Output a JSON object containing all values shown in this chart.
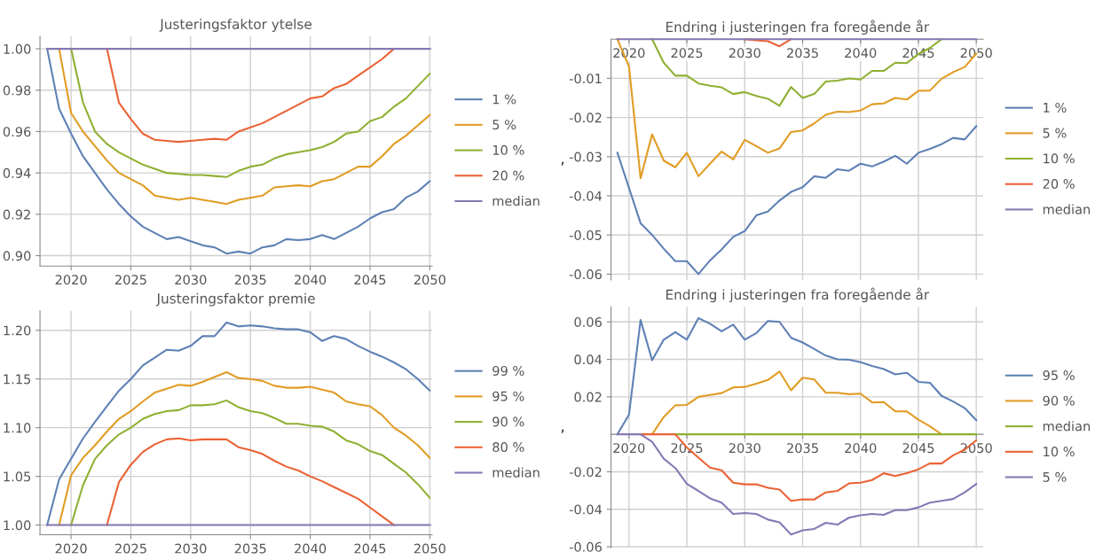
{
  "chart_data": [
    {
      "type": "line",
      "title": "Justeringsfaktor ytelse",
      "x": [
        2018,
        2019,
        2020,
        2021,
        2022,
        2023,
        2024,
        2025,
        2026,
        2027,
        2028,
        2029,
        2030,
        2031,
        2032,
        2033,
        2034,
        2035,
        2036,
        2037,
        2038,
        2039,
        2040,
        2041,
        2042,
        2043,
        2044,
        2045,
        2046,
        2047,
        2048,
        2049,
        2050
      ],
      "xlim": [
        2017.4,
        2050.2
      ],
      "xticks": [
        2020,
        2025,
        2030,
        2035,
        2040,
        2045,
        2050
      ],
      "ylim": [
        0.895,
        1.006
      ],
      "yticks": [
        {
          "value": 0.9,
          "label": "0.90"
        },
        {
          "value": 0.92,
          "label": "0.92"
        },
        {
          "value": 0.94,
          "label": "0.94"
        },
        {
          "value": 0.96,
          "label": "0.96"
        },
        {
          "value": 0.98,
          "label": "0.98"
        },
        {
          "value": 1.0,
          "label": "1.00"
        }
      ],
      "grid": true,
      "legend": "right",
      "marker": "none",
      "line_style": "solid",
      "series": [
        {
          "name": "1 %",
          "color": "#5e81b5",
          "values": [
            1.0,
            0.971,
            0.959,
            0.948,
            0.94,
            0.932,
            0.925,
            0.919,
            0.914,
            0.911,
            0.908,
            0.909,
            0.907,
            0.905,
            0.904,
            0.901,
            0.902,
            0.901,
            0.904,
            0.905,
            0.908,
            0.9075,
            0.908,
            0.91,
            0.908,
            0.911,
            0.914,
            0.918,
            0.921,
            0.9225,
            0.928,
            0.931,
            0.936
          ]
        },
        {
          "name": "5 %",
          "color": "#e19c24",
          "values": [
            null,
            1.0,
            0.969,
            0.96,
            0.953,
            0.946,
            0.94,
            0.937,
            0.934,
            0.929,
            0.928,
            0.927,
            0.928,
            0.927,
            0.926,
            0.925,
            0.927,
            0.928,
            0.929,
            0.933,
            0.9335,
            0.934,
            0.9335,
            0.936,
            0.937,
            0.94,
            0.943,
            0.943,
            0.948,
            0.954,
            0.958,
            0.963,
            0.968
          ]
        },
        {
          "name": "10 %",
          "color": "#8fb032",
          "values": [
            null,
            null,
            1.0,
            0.974,
            0.96,
            0.954,
            0.95,
            0.947,
            0.944,
            0.942,
            0.94,
            0.9395,
            0.939,
            0.939,
            0.9385,
            0.938,
            0.941,
            0.943,
            0.944,
            0.947,
            0.949,
            0.95,
            0.951,
            0.9525,
            0.955,
            0.959,
            0.96,
            0.965,
            0.967,
            0.972,
            0.976,
            0.982,
            0.988
          ]
        },
        {
          "name": "20 %",
          "color": "#eb6235",
          "values": [
            null,
            null,
            null,
            null,
            null,
            1.0,
            0.974,
            0.966,
            0.959,
            0.956,
            0.9555,
            0.955,
            0.9555,
            0.956,
            0.9565,
            0.956,
            0.96,
            0.962,
            0.964,
            0.967,
            0.97,
            0.973,
            0.976,
            0.977,
            0.981,
            0.983,
            0.987,
            0.991,
            0.995,
            1.0,
            null,
            null,
            null
          ]
        },
        {
          "name": "median",
          "color": "#8778b3",
          "values": [
            1.0,
            1.0,
            1.0,
            1.0,
            1.0,
            1.0,
            1.0,
            1.0,
            1.0,
            1.0,
            1.0,
            1.0,
            1.0,
            1.0,
            1.0,
            1.0,
            1.0,
            1.0,
            1.0,
            1.0,
            1.0,
            1.0,
            1.0,
            1.0,
            1.0,
            1.0,
            1.0,
            1.0,
            1.0,
            1.0,
            1.0,
            1.0,
            1.0
          ]
        }
      ]
    },
    {
      "type": "line",
      "title": "Endring i justeringen fra foregående år",
      "annotations": [
        ","
      ],
      "x": [
        2019,
        2020,
        2021,
        2022,
        2023,
        2024,
        2025,
        2026,
        2027,
        2028,
        2029,
        2030,
        2031,
        2032,
        2033,
        2034,
        2035,
        2036,
        2037,
        2038,
        2039,
        2040,
        2041,
        2042,
        2043,
        2044,
        2045,
        2046,
        2047,
        2048,
        2049,
        2050
      ],
      "xlim": [
        2018.45,
        2050.6
      ],
      "xticks": [
        2020,
        2025,
        2030,
        2035,
        2040,
        2045,
        2050
      ],
      "ylim": [
        -0.0615,
        0
      ],
      "yticks": [
        -0.06,
        -0.05,
        -0.04,
        -0.03,
        -0.02,
        -0.01
      ],
      "grid": true,
      "legend": "right",
      "marker": "none",
      "line_style": "solid",
      "series": [
        {
          "name": "1 %",
          "color": "#5e81b5",
          "values": [
            -0.029,
            -0.038,
            -0.047,
            -0.05,
            -0.0535,
            -0.0567,
            -0.0567,
            -0.06,
            -0.0565,
            -0.0537,
            -0.0505,
            -0.049,
            -0.045,
            -0.044,
            -0.0412,
            -0.039,
            -0.0378,
            -0.035,
            -0.0354,
            -0.0332,
            -0.0336,
            -0.0318,
            -0.0325,
            -0.0313,
            -0.0298,
            -0.0318,
            -0.029,
            -0.028,
            -0.0268,
            -0.0252,
            -0.0256,
            -0.0222
          ]
        },
        {
          "name": "5 %",
          "color": "#e19c24",
          "values": [
            0,
            -0.007,
            -0.0355,
            -0.0243,
            -0.031,
            -0.0327,
            -0.029,
            -0.035,
            -0.0318,
            -0.0287,
            -0.0307,
            -0.0257,
            -0.0273,
            -0.029,
            -0.0279,
            -0.0237,
            -0.0233,
            -0.0215,
            -0.0193,
            -0.0185,
            -0.0186,
            -0.0182,
            -0.0166,
            -0.0164,
            -0.015,
            -0.0154,
            -0.0132,
            -0.0131,
            -0.0101,
            -0.0084,
            -0.0071,
            -0.0037
          ]
        },
        {
          "name": "10 %",
          "color": "#8fb032",
          "values": [
            null,
            null,
            null,
            0,
            -0.006,
            -0.0093,
            -0.0093,
            -0.0113,
            -0.0119,
            -0.0123,
            -0.014,
            -0.0135,
            -0.0145,
            -0.0152,
            -0.017,
            -0.0122,
            -0.015,
            -0.014,
            -0.0108,
            -0.0106,
            -0.01,
            -0.0103,
            -0.0081,
            -0.0081,
            -0.006,
            -0.0061,
            -0.0038,
            -0.0022,
            0,
            null,
            null,
            null
          ]
        },
        {
          "name": "20 %",
          "color": "#eb6235",
          "values": [
            null,
            null,
            null,
            null,
            null,
            null,
            null,
            null,
            null,
            null,
            null,
            0,
            -0.0003,
            -0.0005,
            -0.0018,
            0,
            null,
            null,
            null,
            null,
            null,
            null,
            null,
            null,
            null,
            null,
            null,
            null,
            null,
            null,
            null,
            null
          ]
        },
        {
          "name": "median",
          "color": "#8778b3",
          "values": [
            0,
            0,
            0,
            0,
            0,
            0,
            0,
            0,
            0,
            0,
            0,
            0,
            0,
            0,
            0,
            0,
            0,
            0,
            0,
            0,
            0,
            0,
            0,
            0,
            0,
            0,
            0,
            0,
            0,
            0,
            0,
            0
          ]
        }
      ]
    },
    {
      "type": "line",
      "title": "Justeringsfaktor premie",
      "x": [
        2018,
        2019,
        2020,
        2021,
        2022,
        2023,
        2024,
        2025,
        2026,
        2027,
        2028,
        2029,
        2030,
        2031,
        2032,
        2033,
        2034,
        2035,
        2036,
        2037,
        2038,
        2039,
        2040,
        2041,
        2042,
        2043,
        2044,
        2045,
        2046,
        2047,
        2048,
        2049,
        2050
      ],
      "xlim": [
        2017.4,
        2050.2
      ],
      "xticks": [
        2020,
        2025,
        2030,
        2035,
        2040,
        2045,
        2050
      ],
      "ylim": [
        0.99,
        1.22
      ],
      "yticks": [
        {
          "value": 1.0,
          "label": "1.00"
        },
        {
          "value": 1.05,
          "label": "1.05"
        },
        {
          "value": 1.1,
          "label": "1.10"
        },
        {
          "value": 1.15,
          "label": "1.15"
        },
        {
          "value": 1.2,
          "label": "1.20"
        }
      ],
      "grid": true,
      "legend": "right",
      "marker": "none",
      "line_style": "solid",
      "series": [
        {
          "name": "99 %",
          "color": "#5e81b5",
          "values": [
            1.0,
            1.047,
            1.068,
            1.089,
            1.106,
            1.122,
            1.138,
            1.15,
            1.164,
            1.172,
            1.18,
            1.179,
            1.184,
            1.194,
            1.194,
            1.208,
            1.204,
            1.205,
            1.204,
            1.202,
            1.201,
            1.201,
            1.198,
            1.189,
            1.194,
            1.191,
            1.184,
            1.178,
            1.173,
            1.167,
            1.16,
            1.15,
            1.138
          ]
        },
        {
          "name": "95 %",
          "color": "#e19c24",
          "values": [
            null,
            1.0,
            1.051,
            1.069,
            1.082,
            1.096,
            1.109,
            1.117,
            1.127,
            1.136,
            1.14,
            1.144,
            1.143,
            1.147,
            1.152,
            1.157,
            1.151,
            1.15,
            1.148,
            1.143,
            1.141,
            1.141,
            1.142,
            1.139,
            1.136,
            1.127,
            1.124,
            1.122,
            1.113,
            1.1,
            1.092,
            1.082,
            1.069
          ]
        },
        {
          "name": "90 %",
          "color": "#8fb032",
          "values": [
            null,
            null,
            1.0,
            1.041,
            1.068,
            1.082,
            1.093,
            1.1,
            1.109,
            1.114,
            1.117,
            1.118,
            1.123,
            1.123,
            1.124,
            1.128,
            1.121,
            1.117,
            1.115,
            1.11,
            1.104,
            1.104,
            1.102,
            1.101,
            1.096,
            1.087,
            1.083,
            1.076,
            1.072,
            1.063,
            1.054,
            1.042,
            1.028
          ]
        },
        {
          "name": "80 %",
          "color": "#eb6235",
          "values": [
            null,
            null,
            null,
            null,
            null,
            1.0,
            1.044,
            1.062,
            1.075,
            1.083,
            1.088,
            1.089,
            1.087,
            1.088,
            1.088,
            1.088,
            1.08,
            1.077,
            1.073,
            1.066,
            1.06,
            1.056,
            1.05,
            1.045,
            1.039,
            1.033,
            1.027,
            1.018,
            1.009,
            1.0,
            null,
            null,
            null
          ]
        },
        {
          "name": "median",
          "color": "#8778b3",
          "values": [
            1.0,
            1.0,
            1.0,
            1.0,
            1.0,
            1.0,
            1.0,
            1.0,
            1.0,
            1.0,
            1.0,
            1.0,
            1.0,
            1.0,
            1.0,
            1.0,
            1.0,
            1.0,
            1.0,
            1.0,
            1.0,
            1.0,
            1.0,
            1.0,
            1.0,
            1.0,
            1.0,
            1.0,
            1.0,
            1.0,
            1.0,
            1.0,
            1.0
          ]
        }
      ]
    },
    {
      "type": "line",
      "title": "Endring i justeringen fra foregående år",
      "annotations": [
        ","
      ],
      "x": [
        2019,
        2020,
        2021,
        2022,
        2023,
        2024,
        2025,
        2026,
        2027,
        2028,
        2029,
        2030,
        2031,
        2032,
        2033,
        2034,
        2035,
        2036,
        2037,
        2038,
        2039,
        2040,
        2041,
        2042,
        2043,
        2044,
        2045,
        2046,
        2047,
        2048,
        2049,
        2050
      ],
      "xlim": [
        2018.45,
        2050.6
      ],
      "xticks": [
        2020,
        2025,
        2030,
        2035,
        2040,
        2045,
        2050
      ],
      "ylim": [
        -0.0605,
        0.068
      ],
      "yticks": [
        -0.06,
        -0.04,
        -0.02,
        0.02,
        0.04,
        0.06
      ],
      "grid": true,
      "legend": "right",
      "marker": "none",
      "line_style": "solid",
      "series": [
        {
          "name": "95 %",
          "color": "#5e81b5",
          "values": [
            0,
            0.0105,
            0.061,
            0.0395,
            0.0505,
            0.0545,
            0.0505,
            0.062,
            0.059,
            0.055,
            0.0585,
            0.0505,
            0.054,
            0.0605,
            0.06,
            0.0515,
            0.049,
            0.0455,
            0.042,
            0.04,
            0.0398,
            0.0385,
            0.0365,
            0.0348,
            0.032,
            0.0328,
            0.028,
            0.0275,
            0.0205,
            0.0175,
            0.014,
            0.0075
          ]
        },
        {
          "name": "90 %",
          "color": "#e19c24",
          "values": [
            null,
            null,
            null,
            0,
            0.0092,
            0.0155,
            0.0157,
            0.02,
            0.021,
            0.022,
            0.025,
            0.0253,
            0.027,
            0.029,
            0.0335,
            0.0235,
            0.0302,
            0.0293,
            0.0222,
            0.0222,
            0.0214,
            0.0217,
            0.017,
            0.0172,
            0.0123,
            0.0122,
            0.0078,
            0.0043,
            0,
            null,
            null,
            null
          ]
        },
        {
          "name": "median",
          "color": "#8fb032",
          "values": [
            null,
            null,
            null,
            null,
            null,
            0,
            0,
            0,
            0,
            0,
            0,
            0,
            0,
            0,
            0,
            0,
            0,
            0,
            0,
            0,
            0,
            0,
            0,
            0,
            0,
            0,
            0,
            0,
            0,
            0,
            0,
            0
          ]
        },
        {
          "name": "10 %",
          "color": "#eb6235",
          "values": [
            null,
            null,
            0,
            0,
            0,
            0,
            -0.007,
            -0.0125,
            -0.0178,
            -0.0192,
            -0.0258,
            -0.0267,
            -0.0267,
            -0.0285,
            -0.0295,
            -0.0355,
            -0.0347,
            -0.0348,
            -0.031,
            -0.0302,
            -0.0262,
            -0.0258,
            -0.0244,
            -0.0208,
            -0.0223,
            -0.0207,
            -0.0187,
            -0.0155,
            -0.0156,
            -0.0112,
            -0.0082,
            -0.0032
          ]
        },
        {
          "name": "5 %",
          "color": "#8778b3",
          "values": [
            0,
            0,
            0,
            -0.004,
            -0.013,
            -0.018,
            -0.0265,
            -0.0302,
            -0.0342,
            -0.0365,
            -0.0425,
            -0.042,
            -0.0425,
            -0.0455,
            -0.047,
            -0.0535,
            -0.0512,
            -0.0505,
            -0.0472,
            -0.0482,
            -0.0445,
            -0.0432,
            -0.0425,
            -0.043,
            -0.0405,
            -0.0405,
            -0.039,
            -0.0365,
            -0.0355,
            -0.0345,
            -0.031,
            -0.0265
          ]
        }
      ]
    }
  ]
}
